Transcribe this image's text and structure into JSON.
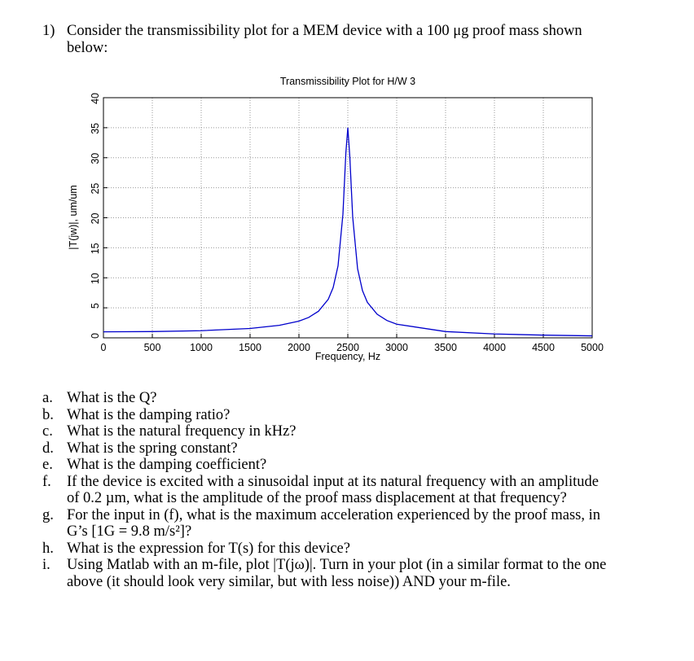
{
  "problem": {
    "number": "1)",
    "text": "Consider the transmissibility plot for a MEM device with a 100 μg proof mass shown below:"
  },
  "chart_data": {
    "type": "line",
    "title": "Transmissibility Plot for H/W 3",
    "x_label": "Frequency, Hz",
    "y_label": "|T(jw)|, um/um",
    "xlim": [
      0,
      5000
    ],
    "ylim": [
      0,
      40
    ],
    "xticks": [
      0,
      500,
      1000,
      1500,
      2000,
      2500,
      3000,
      3500,
      4000,
      4500,
      5000
    ],
    "yticks": [
      0,
      5,
      10,
      15,
      20,
      25,
      30,
      35,
      40
    ],
    "grid": true,
    "series": [
      {
        "name": "|T(jw)|",
        "color": "#0000cc",
        "x": [
          0,
          500,
          1000,
          1500,
          1800,
          2000,
          2100,
          2200,
          2300,
          2350,
          2400,
          2450,
          2480,
          2500,
          2520,
          2550,
          2600,
          2650,
          2700,
          2800,
          2900,
          3000,
          3500,
          4000,
          4500,
          5000
        ],
        "values": [
          1,
          1.04,
          1.19,
          1.56,
          2.08,
          2.78,
          3.4,
          4.43,
          6.42,
          8.37,
          12.0,
          20.6,
          30.8,
          35,
          30.3,
          20.1,
          11.5,
          7.86,
          5.91,
          3.93,
          2.89,
          2.27,
          1.04,
          0.64,
          0.45,
          0.33
        ]
      }
    ]
  },
  "questions": [
    {
      "label": "a.",
      "text": "What is the Q?"
    },
    {
      "label": "b.",
      "text": "What is the damping ratio?"
    },
    {
      "label": "c.",
      "text": "What is the natural frequency in kHz?"
    },
    {
      "label": "d.",
      "text": "What is the spring constant?"
    },
    {
      "label": "e.",
      "text": "What is the damping coefficient?"
    },
    {
      "label": "f.",
      "text": "If the device is excited with a sinusoidal input at its natural frequency with an amplitude of 0.2 µm, what is the amplitude of the proof mass displacement at that frequency?"
    },
    {
      "label": "g.",
      "text": "For the input in (f), what is the maximum acceleration experienced by the proof mass, in G’s [1G = 9.8 m/s²]?"
    },
    {
      "label": "h.",
      "text": "What is the expression for T(s) for this device?"
    },
    {
      "label": "i.",
      "text": "Using Matlab with an m-file, plot |T(jω)|.  Turn in your plot (in a similar format to the one above (it should look very similar, but with less noise)) AND your m-file."
    }
  ]
}
